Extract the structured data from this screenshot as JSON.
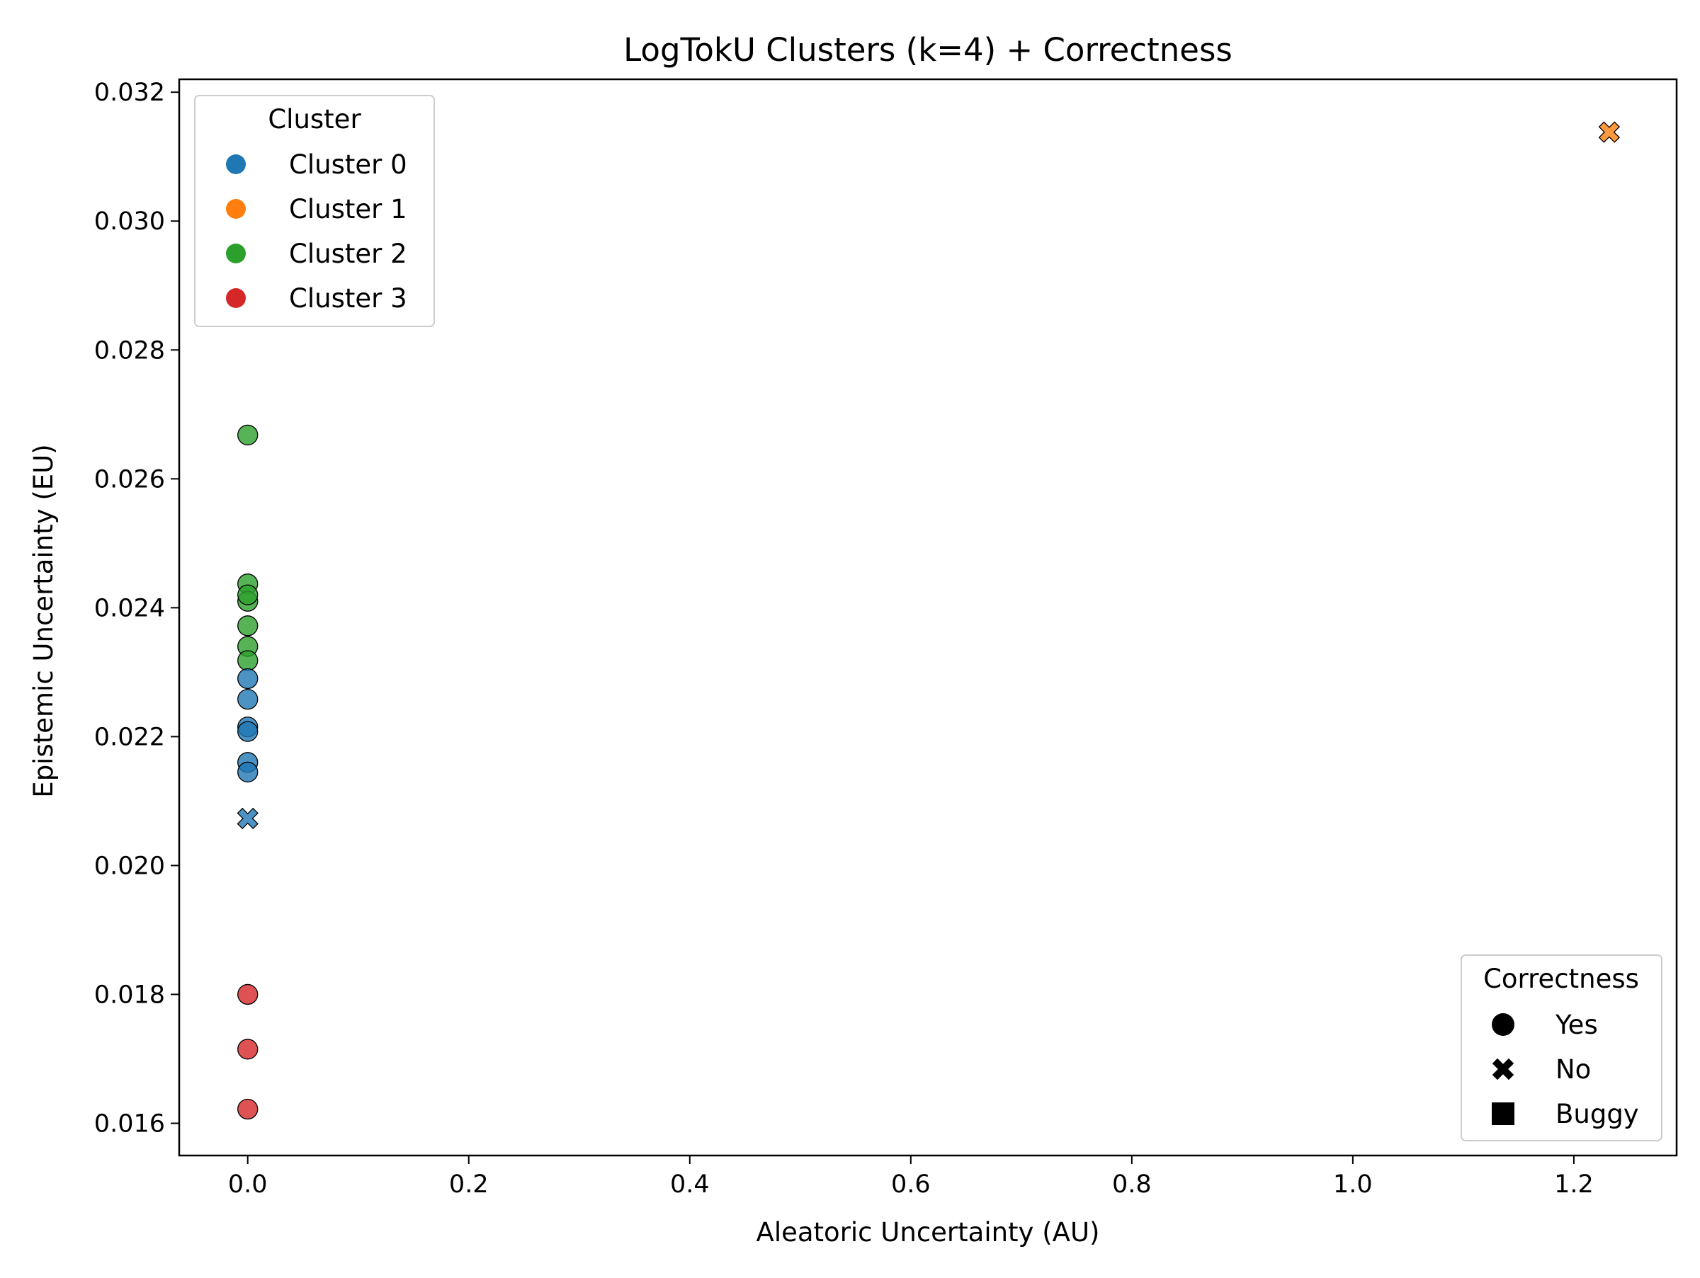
{
  "chart_data": {
    "type": "scatter",
    "title": "LogTokU Clusters (k=4) + Correctness",
    "xlabel": "Aleatoric Uncertainty (AU)",
    "ylabel": "Epistemic Uncertainty (EU)",
    "xlim": [
      -0.062,
      1.293
    ],
    "ylim": [
      0.0155,
      0.0322
    ],
    "x_ticks": [
      0.0,
      0.2,
      0.4,
      0.6,
      0.8,
      1.0,
      1.2
    ],
    "x_tick_labels": [
      "0.0",
      "0.2",
      "0.4",
      "0.6",
      "0.8",
      "1.0",
      "1.2"
    ],
    "y_ticks": [
      0.016,
      0.018,
      0.02,
      0.022,
      0.024,
      0.026,
      0.028,
      0.03,
      0.032
    ],
    "y_tick_labels": [
      "0.016",
      "0.018",
      "0.020",
      "0.022",
      "0.024",
      "0.026",
      "0.028",
      "0.030",
      "0.032"
    ],
    "grid": false,
    "cluster_legend": {
      "title": "Cluster",
      "placement": "top-left",
      "entries": [
        {
          "label": "Cluster 0",
          "color": "#1f77b4"
        },
        {
          "label": "Cluster 1",
          "color": "#ff7f0e"
        },
        {
          "label": "Cluster 2",
          "color": "#2ca02c"
        },
        {
          "label": "Cluster 3",
          "color": "#d62728"
        }
      ]
    },
    "correctness_legend": {
      "title": "Correctness",
      "placement": "bottom-right",
      "entries": [
        {
          "label": "Yes",
          "marker": "circle"
        },
        {
          "label": "No",
          "marker": "x"
        },
        {
          "label": "Buggy",
          "marker": "square"
        }
      ]
    },
    "points": [
      {
        "x": 0.0,
        "y": 0.02668,
        "cluster": 2,
        "correctness": "Yes"
      },
      {
        "x": 0.0,
        "y": 0.02437,
        "cluster": 2,
        "correctness": "Yes"
      },
      {
        "x": 0.0,
        "y": 0.0241,
        "cluster": 2,
        "correctness": "Yes"
      },
      {
        "x": 0.0,
        "y": 0.0242,
        "cluster": 2,
        "correctness": "Yes"
      },
      {
        "x": 0.0,
        "y": 0.02372,
        "cluster": 2,
        "correctness": "Yes"
      },
      {
        "x": 0.0,
        "y": 0.0234,
        "cluster": 2,
        "correctness": "Yes"
      },
      {
        "x": 0.0,
        "y": 0.02318,
        "cluster": 2,
        "correctness": "Yes"
      },
      {
        "x": 0.0,
        "y": 0.0229,
        "cluster": 0,
        "correctness": "Yes"
      },
      {
        "x": 0.0,
        "y": 0.02258,
        "cluster": 0,
        "correctness": "Yes"
      },
      {
        "x": 0.0,
        "y": 0.02215,
        "cluster": 0,
        "correctness": "Yes"
      },
      {
        "x": 0.0,
        "y": 0.02208,
        "cluster": 0,
        "correctness": "Yes"
      },
      {
        "x": 0.0,
        "y": 0.0216,
        "cluster": 0,
        "correctness": "Yes"
      },
      {
        "x": 0.0,
        "y": 0.02145,
        "cluster": 0,
        "correctness": "Yes"
      },
      {
        "x": 0.0,
        "y": 0.02073,
        "cluster": 0,
        "correctness": "No"
      },
      {
        "x": 0.0,
        "y": 0.018,
        "cluster": 3,
        "correctness": "Yes"
      },
      {
        "x": 0.0,
        "y": 0.01715,
        "cluster": 3,
        "correctness": "Yes"
      },
      {
        "x": 0.0,
        "y": 0.01622,
        "cluster": 3,
        "correctness": "Yes"
      },
      {
        "x": 1.232,
        "y": 0.03138,
        "cluster": 1,
        "correctness": "No"
      }
    ]
  }
}
